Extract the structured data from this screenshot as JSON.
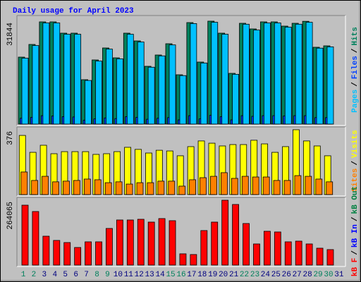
{
  "chart_data": [
    {
      "type": "bar",
      "title": "Daily usage for April 2023",
      "ylim": [
        0,
        31844
      ],
      "yticks": [
        31844
      ],
      "legend_separator": "/",
      "series": [
        {
          "name": "Pages",
          "color": "#00c0ff",
          "values": [
            20400,
            24300,
            31300,
            31300,
            27800,
            27800,
            13500,
            19500,
            23200,
            20200,
            27800,
            25400,
            17600,
            21100,
            24500,
            15000,
            31100,
            18900,
            31500,
            27800,
            15400,
            30900,
            29100,
            31300,
            31300,
            30000,
            30900,
            31500,
            23500,
            23900,
            null
          ]
        },
        {
          "name": "Files",
          "color": "#0040ff",
          "values": [
            1800,
            2100,
            2600,
            2500,
            2300,
            2200,
            1200,
            1600,
            1900,
            1700,
            2300,
            2100,
            1500,
            1800,
            2000,
            1300,
            2600,
            1600,
            2700,
            2300,
            1300,
            2600,
            2400,
            2600,
            2600,
            2500,
            2600,
            2600,
            2000,
            2000,
            null
          ]
        },
        {
          "name": "Hits",
          "color": "#00805c",
          "values": [
            20720,
            24645,
            31626,
            31626,
            28135,
            28135,
            13740,
            19847,
            23555,
            20501,
            28135,
            25736,
            17884,
            21374,
            24864,
            15267,
            31407,
            19193,
            31844,
            28135,
            15703,
            31189,
            29444,
            31626,
            31626,
            30316,
            31189,
            31800,
            23773,
            24210,
            null
          ]
        }
      ]
    },
    {
      "type": "bar",
      "ylim": [
        0,
        376
      ],
      "yticks": [
        376
      ],
      "legend_separator": "/",
      "series": [
        {
          "name": "Sites",
          "color": "#ff8000",
          "values": [
            131,
            82,
            106,
            74,
            78,
            82,
            90,
            86,
            69,
            74,
            61,
            69,
            69,
            78,
            78,
            49,
            86,
            98,
            106,
            127,
            94,
            106,
            102,
            102,
            82,
            82,
            110,
            106,
            90,
            74,
            null
          ]
        },
        {
          "name": "Visits",
          "color": "#ffff00",
          "values": [
            343,
            245,
            286,
            237,
            249,
            249,
            249,
            233,
            237,
            249,
            274,
            262,
            241,
            257,
            253,
            225,
            278,
            311,
            298,
            282,
            290,
            290,
            315,
            294,
            245,
            278,
            376,
            311,
            282,
            225,
            null
          ]
        }
      ]
    },
    {
      "type": "bar",
      "ylim": [
        0,
        264065
      ],
      "yticks": [
        264065
      ],
      "legend_separator": "/",
      "categories": [
        "1",
        "2",
        "3",
        "4",
        "5",
        "6",
        "7",
        "8",
        "9",
        "10",
        "11",
        "12",
        "13",
        "14",
        "15",
        "16",
        "17",
        "18",
        "19",
        "20",
        "21",
        "22",
        "23",
        "24",
        "25",
        "26",
        "27",
        "28",
        "29",
        "30",
        "31"
      ],
      "category_colors": [
        "#00805c",
        "#00805c",
        "#000080",
        "#000080",
        "#000080",
        "#000080",
        "#000080",
        "#00805c",
        "#00805c",
        "#000080",
        "#000080",
        "#000080",
        "#000080",
        "#000080",
        "#00805c",
        "#00805c",
        "#000080",
        "#000080",
        "#000080",
        "#000080",
        "#000080",
        "#00805c",
        "#00805c",
        "#000080",
        "#000080",
        "#000080",
        "#000080",
        "#000080",
        "#00805c",
        "#00805c",
        "#000080"
      ],
      "series": [
        {
          "name": "kB F",
          "color": "#ff0000",
          "values": [
            243950,
            218120,
            117670,
            100450,
            91840,
            71750,
            94710,
            94710,
            149240,
            183680,
            183680,
            186550,
            175070,
            189420,
            180810,
            45920,
            43050,
            140630,
            175070,
            264065,
            246820,
            169330,
            86100,
            137760,
            134890,
            94710,
            97580,
            86100,
            68880,
            63140,
            null
          ]
        },
        {
          "name": "kB In",
          "color": "#0000ff",
          "values": [
            null,
            null,
            null,
            null,
            null,
            null,
            null,
            null,
            null,
            null,
            null,
            null,
            null,
            null,
            null,
            null,
            null,
            null,
            null,
            null,
            null,
            null,
            null,
            null,
            null,
            null,
            null,
            null,
            null,
            null,
            null
          ]
        },
        {
          "name": "kB Out",
          "color": "#008040",
          "values": [
            null,
            null,
            null,
            null,
            null,
            null,
            null,
            null,
            null,
            null,
            null,
            null,
            null,
            null,
            null,
            null,
            null,
            null,
            null,
            null,
            null,
            null,
            null,
            null,
            null,
            null,
            null,
            null,
            null,
            null,
            null
          ]
        }
      ]
    }
  ]
}
